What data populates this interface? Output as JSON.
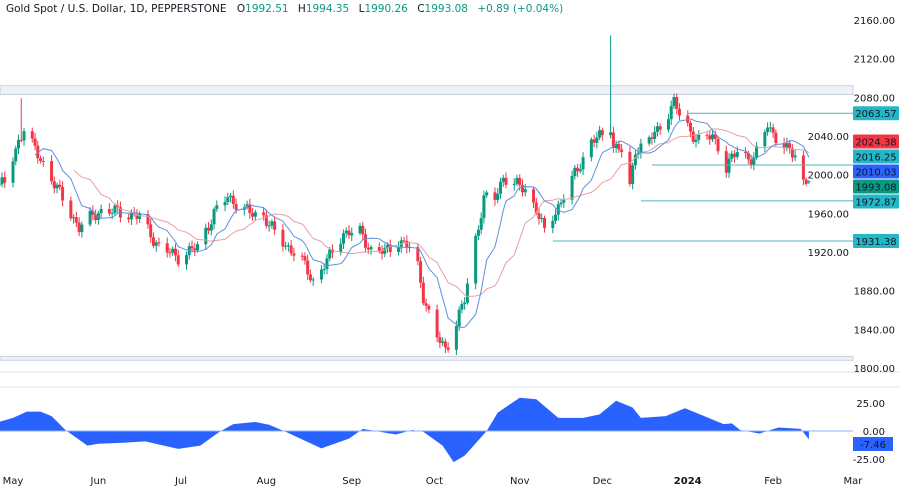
{
  "header": {
    "title": "Gold Spot / U.S. Dollar, 1D, PEPPERSTONE",
    "open_label": "O",
    "open": "1992.51",
    "high_label": "H",
    "high": "1994.35",
    "low_label": "L",
    "low": "1990.26",
    "close_label": "C",
    "close": "1993.08",
    "change": "+0.89 (+0.04%)"
  },
  "colors": {
    "up": "#089981",
    "down": "#f23645",
    "ma_fast": "#5b8fe0",
    "ma_slow": "#e8a0a0",
    "level_line": "#4fb3bf",
    "level_label": "#22b7c9",
    "oscillator": "#2962ff",
    "band_fill": "#eef1f8",
    "band_line": "#c9d0dd"
  },
  "price_axis": {
    "ticks": [
      "2160.00",
      "2120.00",
      "2080.00",
      "2040.00",
      "2000.00",
      "1960.00",
      "1920.00",
      "1880.00",
      "1840.00",
      "1800.00"
    ]
  },
  "oscillator_axis": {
    "ticks": [
      "25.00",
      "0.00",
      "-25.00"
    ],
    "current_label": "-7.46"
  },
  "time_axis": {
    "labels": [
      {
        "text": "May",
        "date": "2023-05-01"
      },
      {
        "text": "Jun",
        "date": "2023-06-01"
      },
      {
        "text": "Jul",
        "date": "2023-07-01"
      },
      {
        "text": "Aug",
        "date": "2023-08-01"
      },
      {
        "text": "Sep",
        "date": "2023-09-01"
      },
      {
        "text": "Oct",
        "date": "2023-10-01"
      },
      {
        "text": "Nov",
        "date": "2023-11-01"
      },
      {
        "text": "Dec",
        "date": "2023-12-01"
      },
      {
        "text": "2024",
        "date": "2024-01-01",
        "bold": true
      },
      {
        "text": "Feb",
        "date": "2024-02-01"
      },
      {
        "text": "Mar",
        "date": "2024-03-01"
      }
    ]
  },
  "price_labels": [
    {
      "text": "2063.57",
      "price": 2063.57,
      "color": "#22b7c9"
    },
    {
      "text": "2024.38",
      "price": 2024.38,
      "color": "#f23645"
    },
    {
      "text": "2016.25",
      "price": 2016.25,
      "color": "#22b7c9"
    },
    {
      "text": "2010.03",
      "price": 2010.03,
      "color": "#2962ff"
    },
    {
      "text": "1993.08",
      "price": 1993.08,
      "color": "#089981"
    },
    {
      "text": "1972.87",
      "price": 1972.87,
      "color": "#22b7c9"
    },
    {
      "text": "1931.38",
      "price": 1931.38,
      "color": "#22b7c9"
    }
  ],
  "levels": [
    {
      "price": 2063.57,
      "from": "2024-01-01"
    },
    {
      "price": 2010.03,
      "from": "2023-12-19"
    },
    {
      "price": 1972.87,
      "from": "2023-12-15"
    },
    {
      "price": 1931.38,
      "from": "2023-11-13"
    }
  ],
  "zones": [
    {
      "top": 2092,
      "bottom": 2083
    },
    {
      "top": 1812,
      "bottom": 1808
    }
  ],
  "chart_data": {
    "type": "candlestick",
    "symbol": "Gold Spot / U.S. Dollar",
    "interval": "1D",
    "ylim": [
      1800,
      2160
    ],
    "moving_averages": [
      10,
      20
    ],
    "close_keypoints": [
      [
        "2023-04-26",
        1990
      ],
      [
        "2023-04-28",
        1990
      ],
      [
        "2023-05-03",
        2035
      ],
      [
        "2023-05-05",
        2048
      ],
      [
        "2023-05-09",
        2025
      ],
      [
        "2023-05-12",
        2012
      ],
      [
        "2023-05-18",
        1980
      ],
      [
        "2023-05-25",
        1945
      ],
      [
        "2023-06-01",
        1962
      ],
      [
        "2023-06-08",
        1962
      ],
      [
        "2023-06-16",
        1956
      ],
      [
        "2023-06-23",
        1925
      ],
      [
        "2023-06-30",
        1915
      ],
      [
        "2023-07-07",
        1925
      ],
      [
        "2023-07-13",
        1960
      ],
      [
        "2023-07-18",
        1977
      ],
      [
        "2023-07-26",
        1960
      ],
      [
        "2023-07-31",
        1958
      ],
      [
        "2023-08-05",
        1935
      ],
      [
        "2023-08-13",
        1915
      ],
      [
        "2023-08-18",
        1890
      ],
      [
        "2023-08-24",
        1915
      ],
      [
        "2023-08-29",
        1940
      ],
      [
        "2023-09-04",
        1940
      ],
      [
        "2023-09-08",
        1922
      ],
      [
        "2023-09-13",
        1920
      ],
      [
        "2023-09-18",
        1932
      ],
      [
        "2023-09-24",
        1920
      ],
      [
        "2023-09-27",
        1875
      ],
      [
        "2023-10-01",
        1835
      ],
      [
        "2023-10-05",
        1820
      ],
      [
        "2023-10-07",
        1832
      ],
      [
        "2023-10-12",
        1870
      ],
      [
        "2023-10-15",
        1920
      ],
      [
        "2023-10-19",
        1975
      ],
      [
        "2023-10-23",
        1975
      ],
      [
        "2023-10-26",
        1998
      ],
      [
        "2023-10-30",
        1990
      ],
      [
        "2023-11-03",
        1985
      ],
      [
        "2023-11-07",
        1965
      ],
      [
        "2023-11-10",
        1940
      ],
      [
        "2023-11-14",
        1962
      ],
      [
        "2023-11-17",
        1978
      ],
      [
        "2023-11-21",
        2000
      ],
      [
        "2023-11-27",
        2035
      ],
      [
        "2023-12-01",
        2040
      ],
      [
        "2023-12-03",
        2072
      ],
      [
        "2023-12-05",
        2030
      ],
      [
        "2023-12-08",
        2025
      ],
      [
        "2023-12-11",
        1985
      ],
      [
        "2023-12-13",
        2027
      ],
      [
        "2023-12-16",
        2030
      ],
      [
        "2023-12-21",
        2045
      ],
      [
        "2023-12-25",
        2065
      ],
      [
        "2023-12-27",
        2075
      ],
      [
        "2023-12-29",
        2062
      ],
      [
        "2024-01-02",
        2045
      ],
      [
        "2024-01-05",
        2035
      ],
      [
        "2024-01-10",
        2040
      ],
      [
        "2024-01-12",
        2030
      ],
      [
        "2024-01-15",
        2007
      ],
      [
        "2024-01-19",
        2025
      ],
      [
        "2024-01-22",
        2020
      ],
      [
        "2024-01-25",
        2015
      ],
      [
        "2024-01-28",
        2035
      ],
      [
        "2024-01-30",
        2053
      ],
      [
        "2024-02-02",
        2038
      ],
      [
        "2024-02-06",
        2025
      ],
      [
        "2024-02-09",
        2022
      ],
      [
        "2024-02-11",
        2010
      ],
      [
        "2024-02-12",
        1993
      ],
      [
        "2024-02-14",
        1993
      ]
    ],
    "notable_highs": [
      {
        "date": "2023-05-04",
        "high": 2079
      },
      {
        "date": "2023-12-04",
        "high": 2144
      }
    ],
    "last_ohlc": {
      "open": 1992.51,
      "high": 1994.35,
      "low": 1990.26,
      "close": 1993.08,
      "change": 0.89,
      "change_pct": 0.04
    },
    "oscillator": {
      "ylim": [
        -30,
        32
      ],
      "current": -7.46,
      "points": [
        [
          "2023-04-26",
          8.2
        ],
        [
          "2023-05-01",
          11.7
        ],
        [
          "2023-05-06",
          17.3
        ],
        [
          "2023-05-11",
          17.3
        ],
        [
          "2023-05-15",
          13.3
        ],
        [
          "2023-05-20",
          1
        ],
        [
          "2023-05-28",
          -13
        ],
        [
          "2023-06-01",
          -11.4
        ],
        [
          "2023-06-10",
          -10.5
        ],
        [
          "2023-06-18",
          -9.3
        ],
        [
          "2023-06-30",
          -16
        ],
        [
          "2023-07-08",
          -13
        ],
        [
          "2023-07-15",
          -0.6
        ],
        [
          "2023-07-20",
          6.2
        ],
        [
          "2023-07-28",
          8
        ],
        [
          "2023-08-02",
          5.6
        ],
        [
          "2023-08-08",
          -0.6
        ],
        [
          "2023-08-21",
          -15.5
        ],
        [
          "2023-08-31",
          -6.8
        ],
        [
          "2023-09-05",
          1.9
        ],
        [
          "2023-09-17",
          -3.1
        ],
        [
          "2023-09-23",
          0.9
        ],
        [
          "2023-09-27",
          -0.6
        ],
        [
          "2023-10-04",
          -13
        ],
        [
          "2023-10-08",
          -27.8
        ],
        [
          "2023-10-12",
          -22
        ],
        [
          "2023-10-20",
          0
        ],
        [
          "2023-10-24",
          16.4
        ],
        [
          "2023-11-01",
          29.6
        ],
        [
          "2023-11-07",
          28.4
        ],
        [
          "2023-11-15",
          11.7
        ],
        [
          "2023-11-24",
          11.7
        ],
        [
          "2023-11-30",
          14.8
        ],
        [
          "2023-12-06",
          27
        ],
        [
          "2023-12-12",
          21
        ],
        [
          "2023-12-15",
          11.7
        ],
        [
          "2023-12-24",
          13.3
        ],
        [
          "2023-12-31",
          20.4
        ],
        [
          "2024-01-07",
          13.3
        ],
        [
          "2024-01-14",
          6.2
        ],
        [
          "2024-01-17",
          6.8
        ],
        [
          "2024-01-20",
          0.9
        ],
        [
          "2024-01-27",
          -2.2
        ],
        [
          "2024-02-03",
          3.1
        ],
        [
          "2024-02-11",
          1.9
        ],
        [
          "2024-02-14",
          -7.46
        ]
      ]
    }
  }
}
